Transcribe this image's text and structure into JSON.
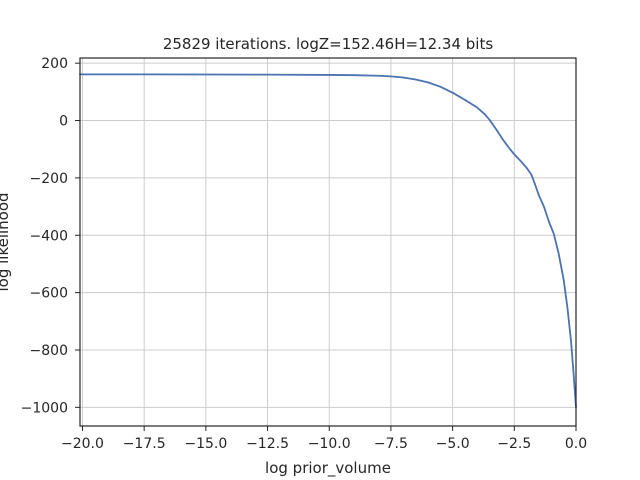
{
  "chart_data": {
    "type": "line",
    "title": "25829 iterations. logZ=152.46H=12.34 bits",
    "xlabel": "log prior_volume",
    "ylabel": "log likelihood",
    "xlim": [
      -20.1,
      0.0
    ],
    "ylim": [
      -1065,
      218
    ],
    "x_ticks": [
      -20.0,
      -17.5,
      -15.0,
      -12.5,
      -10.0,
      -7.5,
      -5.0,
      -2.5,
      0.0
    ],
    "x_tick_labels": [
      "−20.0",
      "−17.5",
      "−15.0",
      "−12.5",
      "−10.0",
      "−7.5",
      "−5.0",
      "−2.5",
      "0.0"
    ],
    "y_ticks": [
      200,
      0,
      -200,
      -400,
      -600,
      -800,
      -1000
    ],
    "y_tick_labels": [
      "200",
      "0",
      "−200",
      "−400",
      "−600",
      "−800",
      "−1000"
    ],
    "grid": true,
    "line_color": "#4c72b0",
    "series": [
      {
        "x": [
          -20.1,
          -17.5,
          -15.0,
          -12.5,
          -10.0,
          -9.0,
          -8.0,
          -7.5,
          -7.0,
          -6.5,
          -6.0,
          -5.5,
          -5.0,
          -4.5,
          -4.0,
          -3.7,
          -3.5,
          -3.2,
          -3.0,
          -2.7,
          -2.5,
          -2.2,
          -2.0,
          -1.8,
          -1.65,
          -1.5,
          -1.3,
          -1.1,
          -0.9,
          -0.7,
          -0.5,
          -0.35,
          -0.2,
          -0.1,
          0.0
        ],
        "y": [
          161,
          161,
          160.5,
          160,
          159,
          158,
          156,
          154,
          150,
          143,
          133,
          118,
          97,
          72,
          45,
          22,
          2,
          -35,
          -62,
          -97,
          -118,
          -145,
          -165,
          -190,
          -225,
          -262,
          -300,
          -352,
          -395,
          -465,
          -555,
          -650,
          -770,
          -880,
          -1000
        ]
      }
    ]
  }
}
